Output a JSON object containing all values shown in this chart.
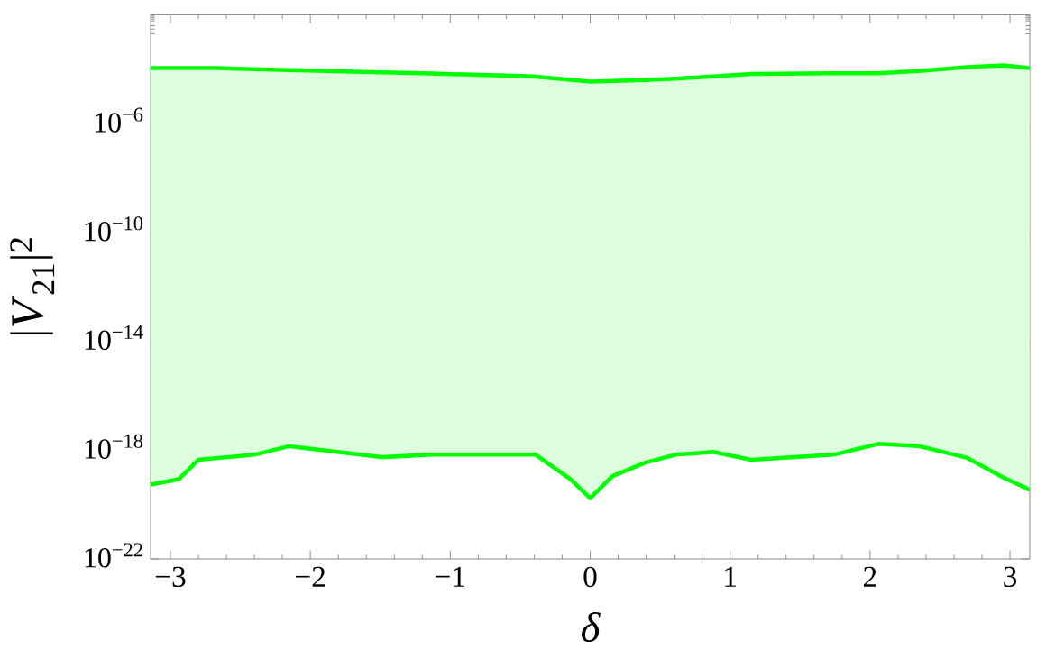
{
  "chart_data": {
    "type": "line",
    "xlabel": "δ",
    "ylabel": "|*V*$_{21}$|$^{2}$",
    "log": "y",
    "marker": "none",
    "line_style": "solid",
    "x": [
      -3.14,
      -2.94,
      -2.8,
      -2.66,
      -2.4,
      -2.15,
      -1.49,
      -1.13,
      -0.39,
      -0.14,
      0,
      0.16,
      0.39,
      0.61,
      0.88,
      1.15,
      1.74,
      2.06,
      2.35,
      2.69,
      2.95,
      3.14
    ],
    "series": [
      {
        "color": "#00ff00",
        "values": [
          0.00011,
          0.00011,
          0.00011,
          0.00011,
          0.0001,
          9.3e-05,
          7.7e-05,
          7e-05,
          5.4e-05,
          4.1e-05,
          3.5e-05,
          3.7e-05,
          4e-05,
          4.5e-05,
          5.5e-05,
          6.7e-05,
          7.1e-05,
          7.1e-05,
          8.7e-05,
          0.00012,
          0.00014,
          0.00011
        ]
      },
      {
        "color": "#00ff00",
        "values": [
          5.4e-20,
          8.5e-20,
          4.4e-19,
          5.1e-19,
          6.8e-19,
          1.4e-18,
          5.5e-19,
          6.8e-19,
          6.8e-19,
          8.5e-20,
          1.7e-20,
          1.1e-19,
          3.4e-19,
          6.8e-19,
          8.6e-19,
          4.4e-19,
          6.8e-19,
          1.7e-18,
          1.4e-18,
          5.3e-19,
          1e-19,
          3.5e-20
        ],
        "lower": [
          5.4e-20,
          8.5e-20,
          4.4e-19,
          5.1e-19,
          6.8e-19,
          1.4e-18,
          5.5e-19,
          6.8e-19,
          6.8e-19,
          8.5e-20,
          1.7e-20,
          1.1e-19,
          3.4e-19,
          6.8e-19,
          8.6e-19,
          4.4e-19,
          6.8e-19,
          1.7e-18,
          1.4e-18,
          5.3e-19,
          1e-19,
          3.5e-20
        ],
        "upper": [
          0.00011,
          0.00011,
          0.00011,
          0.00011,
          0.0001,
          9.3e-05,
          7.7e-05,
          7e-05,
          5.4e-05,
          4.1e-05,
          3.5e-05,
          3.7e-05,
          4e-05,
          4.5e-05,
          5.5e-05,
          6.7e-05,
          7.1e-05,
          7.1e-05,
          8.7e-05,
          0.00012,
          0.00014,
          0.00011
        ]
      }
    ],
    "xlim": [
      -3.1416,
      3.1416
    ],
    "ylim": [
      1e-22,
      0.01
    ],
    "xticks": [
      {
        "value": -3,
        "label": "−3"
      },
      {
        "value": -2.8,
        "label": null
      },
      {
        "value": -2.6,
        "label": null
      },
      {
        "value": -2.4,
        "label": null
      },
      {
        "value": -2.2,
        "label": null
      },
      {
        "value": -2,
        "label": "−2"
      },
      {
        "value": -1.8,
        "label": null
      },
      {
        "value": -1.6,
        "label": null
      },
      {
        "value": -1.4,
        "label": null
      },
      {
        "value": -1.2,
        "label": null
      },
      {
        "value": -1,
        "label": "−1"
      },
      {
        "value": -0.8,
        "label": null
      },
      {
        "value": -0.6,
        "label": null
      },
      {
        "value": -0.4,
        "label": null
      },
      {
        "value": -0.2,
        "label": null
      },
      0,
      {
        "value": 0.2,
        "label": null
      },
      {
        "value": 0.4,
        "label": null
      },
      {
        "value": 0.6,
        "label": null
      },
      {
        "value": 0.8,
        "label": null
      },
      1,
      {
        "value": 1.2,
        "label": null
      },
      {
        "value": 1.4,
        "label": null
      },
      {
        "value": 1.6,
        "label": null
      },
      {
        "value": 1.8,
        "label": null
      },
      2,
      {
        "value": 2.2,
        "label": null
      },
      {
        "value": 2.4,
        "label": null
      },
      {
        "value": 2.6,
        "label": null
      },
      {
        "value": 2.8,
        "label": null
      },
      3
    ],
    "yticks": [
      {
        "value": 1e-22,
        "label": "10$^{−22}$"
      },
      {
        "value": 2e-19,
        "label": null
      },
      {
        "value": 3e-19,
        "label": null
      },
      {
        "value": 4e-19,
        "label": null
      },
      {
        "value": 5e-19,
        "label": null
      },
      {
        "value": 6e-19,
        "label": null
      },
      {
        "value": 7e-19,
        "label": null
      },
      {
        "value": 8e-19,
        "label": null
      },
      {
        "value": 9e-19,
        "label": null
      },
      {
        "value": 1e-18,
        "label": "10$^{−18}$"
      },
      {
        "value": 2e-15,
        "label": null
      },
      {
        "value": 3e-15,
        "label": null
      },
      {
        "value": 4e-15,
        "label": null
      },
      {
        "value": 5e-15,
        "label": null
      },
      {
        "value": 6e-15,
        "label": null
      },
      {
        "value": 7e-15,
        "label": null
      },
      {
        "value": 8e-15,
        "label": null
      },
      {
        "value": 9e-15,
        "label": null
      },
      {
        "value": 1e-14,
        "label": "10$^{−14}$"
      },
      {
        "value": 2e-11,
        "label": null
      },
      {
        "value": 3e-11,
        "label": null
      },
      {
        "value": 4e-11,
        "label": null
      },
      {
        "value": 5e-11,
        "label": null
      },
      {
        "value": 6e-11,
        "label": null
      },
      {
        "value": 7e-11,
        "label": null
      },
      {
        "value": 8e-11,
        "label": null
      },
      {
        "value": 9e-11,
        "label": null
      },
      {
        "value": 1e-10,
        "label": "10$^{−10}$"
      },
      {
        "value": 2e-07,
        "label": null
      },
      {
        "value": 3e-07,
        "label": null
      },
      {
        "value": 4e-07,
        "label": null
      },
      {
        "value": 5e-07,
        "label": null
      },
      {
        "value": 6e-07,
        "label": null
      },
      {
        "value": 7e-07,
        "label": null
      },
      {
        "value": 8e-07,
        "label": null
      },
      {
        "value": 9e-07,
        "label": null
      },
      {
        "value": 1e-06,
        "label": "10$^{−6}$"
      },
      {
        "value": 0.002,
        "label": null
      },
      {
        "value": 0.003,
        "label": null
      },
      {
        "value": 0.004,
        "label": null
      },
      {
        "value": 0.005,
        "label": null
      },
      {
        "value": 0.006,
        "label": null
      },
      {
        "value": 0.007,
        "label": null
      },
      {
        "value": 0.008,
        "label": null
      },
      {
        "value": 0.009,
        "label": null
      },
      {
        "value": 0.01,
        "label": null
      }
    ]
  }
}
